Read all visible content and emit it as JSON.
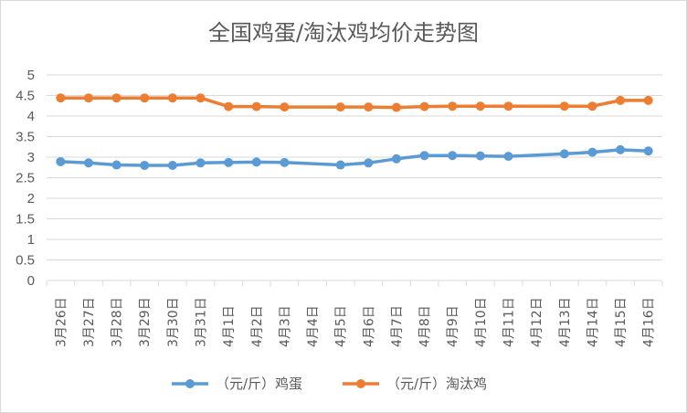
{
  "chart_data": {
    "type": "line",
    "title": "全国鸡蛋/淘汰鸡均价走势图",
    "categories": [
      "3月26日",
      "3月27日",
      "3月28日",
      "3月29日",
      "3月30日",
      "3月31日",
      "4月1日",
      "4月2日",
      "4月3日",
      "4月4日",
      "4月5日",
      "4月6日",
      "4月7日",
      "4月8日",
      "4月9日",
      "4月10日",
      "4月11日",
      "4月12日",
      "4月13日",
      "4月14日",
      "4月15日",
      "4月16日"
    ],
    "series": [
      {
        "name": "（元/斤）鸡蛋",
        "color": "#5b9bd5",
        "values": [
          2.89,
          2.86,
          2.81,
          2.8,
          2.8,
          2.86,
          2.87,
          2.88,
          2.87,
          null,
          2.81,
          2.86,
          2.96,
          3.04,
          3.04,
          3.03,
          3.02,
          null,
          3.08,
          3.12,
          3.18,
          3.15
        ]
      },
      {
        "name": "（元/斤）淘汰鸡",
        "color": "#ed7d31",
        "values": [
          4.44,
          4.44,
          4.44,
          4.44,
          4.44,
          4.44,
          4.23,
          4.23,
          4.22,
          null,
          4.22,
          4.22,
          4.21,
          4.23,
          4.24,
          4.24,
          4.24,
          null,
          4.24,
          4.24,
          4.38,
          4.38
        ]
      }
    ],
    "y_ticks": [
      "0",
      "0.5",
      "1",
      "1.5",
      "2",
      "2.5",
      "3",
      "3.5",
      "4",
      "4.5",
      "5"
    ],
    "ylim": [
      0,
      5
    ],
    "grid": true,
    "legend": "bottom"
  }
}
